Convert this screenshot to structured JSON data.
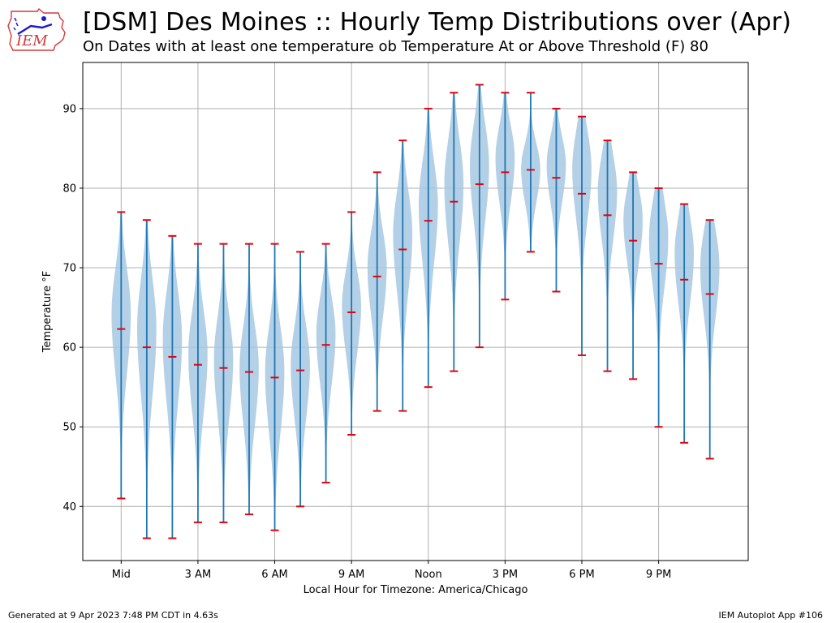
{
  "header": {
    "title": "[DSM] Des Moines :: Hourly Temp Distributions over (Apr)",
    "subtitle": "On Dates with at least one temperature ob Temperature At or Above Threshold (F) 80",
    "logo_text": "IEM"
  },
  "footer": {
    "generated": "Generated at 9 Apr 2023 7:48 PM CDT in 4.63s",
    "app": "IEM Autoplot App #106"
  },
  "colors": {
    "violin_fill": "#a6c8e2",
    "whisker": "#1f77b4",
    "marker": "#e8000b",
    "grid": "#b0b0b0"
  },
  "chart_data": {
    "type": "violin",
    "xlabel": "Local Hour for Timezone: America/Chicago",
    "ylabel": "Temperature °F",
    "ylim": [
      33.2,
      95.8
    ],
    "xlim": [
      -1.5,
      24.5
    ],
    "yticks": [
      40,
      50,
      60,
      70,
      80,
      90
    ],
    "xticks": [
      {
        "hour": 0,
        "label": "Mid"
      },
      {
        "hour": 3,
        "label": "3 AM"
      },
      {
        "hour": 6,
        "label": "6 AM"
      },
      {
        "hour": 9,
        "label": "9 AM"
      },
      {
        "hour": 12,
        "label": "Noon"
      },
      {
        "hour": 15,
        "label": "3 PM"
      },
      {
        "hour": 18,
        "label": "6 PM"
      },
      {
        "hour": 21,
        "label": "9 PM"
      }
    ],
    "grid": true,
    "hours": [
      0,
      1,
      2,
      3,
      4,
      5,
      6,
      7,
      8,
      9,
      10,
      11,
      12,
      13,
      14,
      15,
      16,
      17,
      18,
      19,
      20,
      21,
      22,
      23
    ],
    "min": [
      41,
      36,
      36,
      38,
      38,
      39,
      37,
      40,
      43,
      49,
      52,
      52,
      55,
      57,
      60,
      66,
      72,
      67,
      59,
      57,
      56,
      50,
      48,
      46
    ],
    "mean": [
      62.3,
      60.0,
      58.8,
      57.8,
      57.4,
      56.9,
      56.2,
      57.1,
      60.3,
      64.4,
      68.9,
      72.3,
      75.9,
      78.3,
      80.5,
      82.0,
      82.3,
      81.3,
      79.3,
      76.6,
      73.4,
      70.5,
      68.5,
      66.7
    ],
    "max": [
      77,
      76,
      74,
      73,
      73,
      73,
      73,
      72,
      73,
      77,
      82,
      86,
      90,
      92,
      93,
      92,
      92,
      90,
      89,
      86,
      82,
      80,
      78,
      76
    ]
  }
}
